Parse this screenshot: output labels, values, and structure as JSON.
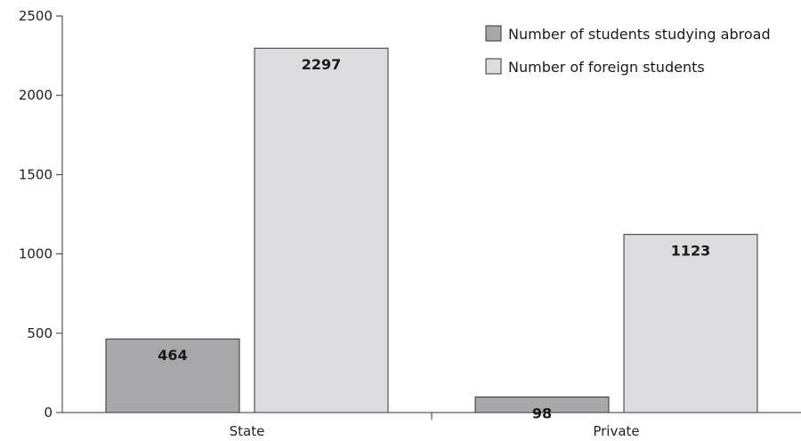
{
  "chart_data": {
    "type": "bar",
    "categories": [
      "State",
      "Private"
    ],
    "series": [
      {
        "name": "Number of students studying abroad",
        "values": [
          464,
          98
        ],
        "color": "#a8a8aa"
      },
      {
        "name": "Number of foreign students",
        "values": [
          2297,
          1123
        ],
        "color": "#dcdcde"
      }
    ],
    "ylim": [
      0,
      2500
    ],
    "yticks": [
      0,
      500,
      1000,
      1500,
      2000,
      2500
    ],
    "grid": false,
    "legend_position": "top-right",
    "title": "",
    "xlabel": "",
    "ylabel": ""
  }
}
